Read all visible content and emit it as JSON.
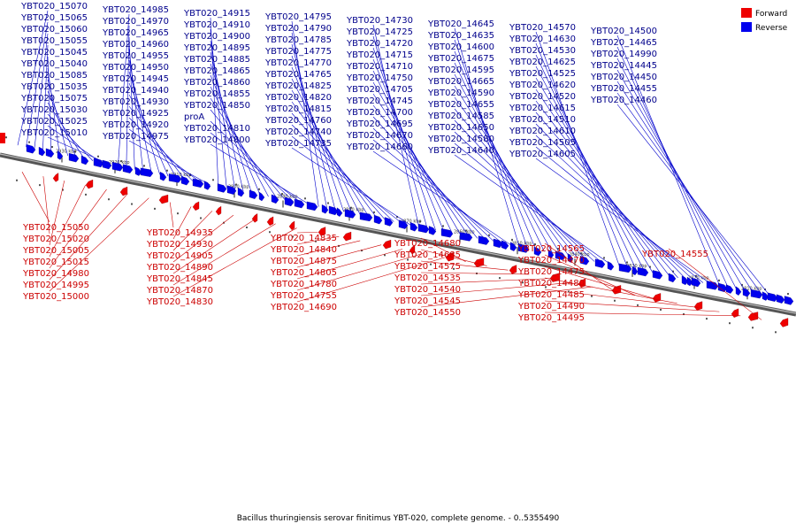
{
  "caption": "Bacillus thuringiensis serovar finitimus YBT-020, complete genome. - 0..5355490",
  "legend": [
    {
      "label": "Forward",
      "color": "#ee0000"
    },
    {
      "label": "Reverse",
      "color": "#0000ee"
    }
  ],
  "ticks": [
    "2930 kbp",
    "2920 kbp",
    "2910 kbp",
    "2900 kbp",
    "2890 kbp",
    "2880 kbp",
    "2870 kbp",
    "2860 kbp",
    "2850 kbp",
    "2840 kbp",
    "2830 kbp",
    "2820 kbp",
    "2810 kbp"
  ],
  "reverse_labels": [
    "YBT020_15070",
    "YBT020_15065",
    "YBT020_15060",
    "YBT020_15055",
    "YBT020_15045",
    "YBT020_15040",
    "YBT020_15085",
    "YBT020_15035",
    "YBT020_15075",
    "YBT020_15030",
    "YBT020_15025",
    "YBT020_15010",
    "YBT020_14985",
    "YBT020_14970",
    "YBT020_14965",
    "YBT020_14960",
    "YBT020_14955",
    "YBT020_14950",
    "YBT020_14945",
    "YBT020_14940",
    "YBT020_14930",
    "YBT020_14925",
    "YBT020_14920",
    "YBT020_14975",
    "YBT020_14915",
    "YBT020_14910",
    "YBT020_14900",
    "YBT020_14895",
    "YBT020_14885",
    "YBT020_14865",
    "YBT020_14860",
    "YBT020_14855",
    "YBT020_14850",
    "proA",
    "YBT020_14810",
    "YBT020_14800",
    "YBT020_14795",
    "YBT020_14790",
    "YBT020_14785",
    "YBT020_14775",
    "YBT020_14770",
    "YBT020_14765",
    "YBT020_14825",
    "YBT020_14820",
    "YBT020_14815",
    "YBT020_14760",
    "YBT020_14740",
    "YBT020_14735",
    "YBT020_14730",
    "YBT020_14725",
    "YBT020_14720",
    "YBT020_14715",
    "YBT020_14710",
    "YBT020_14750",
    "YBT020_14705",
    "YBT020_14745",
    "YBT020_14700",
    "YBT020_14695",
    "YBT020_14670",
    "YBT020_14660",
    "YBT020_14645",
    "YBT020_14635",
    "YBT020_14600",
    "YBT020_14675",
    "YBT020_14595",
    "YBT020_14665",
    "YBT020_14590",
    "YBT020_14655",
    "YBT020_14585",
    "YBT020_14650",
    "YBT020_14580",
    "YBT020_14640",
    "YBT020_14570",
    "YBT020_14630",
    "YBT020_14530",
    "YBT020_14625",
    "YBT020_14525",
    "YBT020_14620",
    "YBT020_14520",
    "YBT020_14615",
    "YBT020_14510",
    "YBT020_14610",
    "YBT020_14505",
    "YBT020_14605",
    "YBT020_14500",
    "YBT020_14465",
    "YBT020_14990",
    "YBT020_14445",
    "YBT020_14450",
    "YBT020_14455",
    "YBT020_14460"
  ],
  "forward_labels": [
    "YBT020_15050",
    "YBT020_15020",
    "YBT020_15005",
    "YBT020_15015",
    "YBT020_14980",
    "YBT020_14995",
    "YBT020_15000",
    "YBT020_14935",
    "YBT020_14930",
    "YBT020_14905",
    "YBT020_14890",
    "YBT020_14845",
    "YBT020_14870",
    "YBT020_14830",
    "YBT020_14835",
    "YBT020_14840",
    "YBT020_14875",
    "YBT020_14805",
    "YBT020_14780",
    "YBT020_14755",
    "YBT020_14690",
    "YBT020_14680",
    "YBT020_14685",
    "YBT020_14575",
    "YBT020_14535",
    "YBT020_14540",
    "YBT020_14545",
    "YBT020_14550",
    "YBT020_14565",
    "YBT020_14470",
    "YBT020_14475",
    "YBT020_14480",
    "YBT020_14485",
    "YBT020_14490",
    "YBT020_14495",
    "YBT020_14555"
  ]
}
